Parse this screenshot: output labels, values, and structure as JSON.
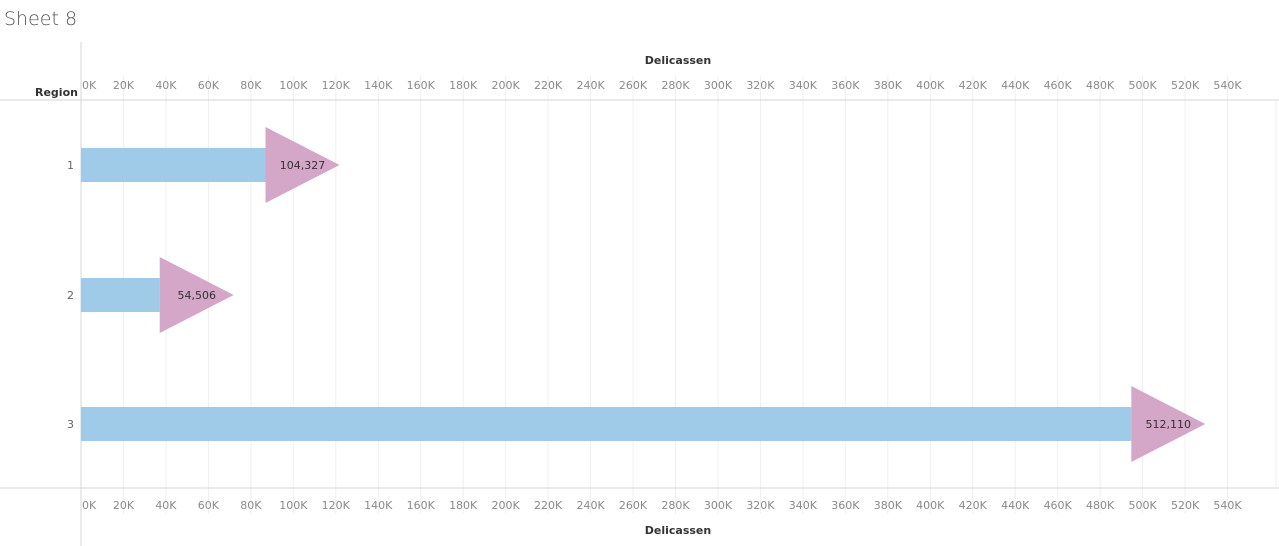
{
  "sheet": {
    "title": "Sheet 8"
  },
  "chart_data": {
    "type": "bar",
    "orientation": "horizontal",
    "row_header": "Region",
    "categories": [
      "1",
      "2",
      "3"
    ],
    "series": [
      {
        "values": [
          104327,
          54506,
          512110
        ],
        "labels": [
          "104,327",
          "54,506",
          "512,110"
        ]
      }
    ],
    "marker": "triangle-right",
    "xlabel": "Delicassen",
    "xlim": [
      0,
      540000
    ],
    "xticks": [
      0,
      20000,
      40000,
      60000,
      80000,
      100000,
      120000,
      140000,
      160000,
      180000,
      200000,
      220000,
      240000,
      260000,
      280000,
      300000,
      320000,
      340000,
      360000,
      380000,
      400000,
      420000,
      440000,
      460000,
      480000,
      500000,
      520000,
      540000
    ],
    "xtick_labels": [
      "0K",
      "20K",
      "40K",
      "60K",
      "80K",
      "100K",
      "120K",
      "140K",
      "160K",
      "180K",
      "200K",
      "220K",
      "240K",
      "260K",
      "280K",
      "300K",
      "320K",
      "340K",
      "360K",
      "380K",
      "400K",
      "420K",
      "440K",
      "460K",
      "480K",
      "500K",
      "520K",
      "540K"
    ],
    "axis_position": "top-and-bottom",
    "grid": true,
    "colors": {
      "bar": "#a0cbe8",
      "marker": "#d4a6c8",
      "grid": "#efefef",
      "axis": "#d4d4d4"
    }
  }
}
